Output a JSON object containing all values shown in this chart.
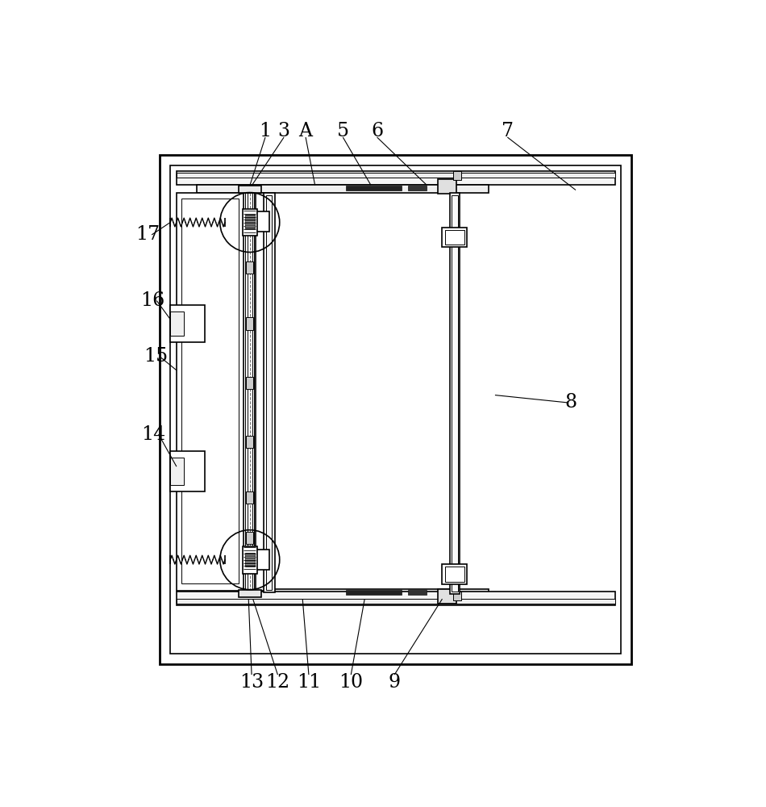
{
  "bg_color": "#ffffff",
  "line_color": "#000000",
  "lw_thick": 2.0,
  "lw_med": 1.2,
  "lw_thin": 0.7,
  "fig_width": 9.5,
  "fig_height": 10.0
}
